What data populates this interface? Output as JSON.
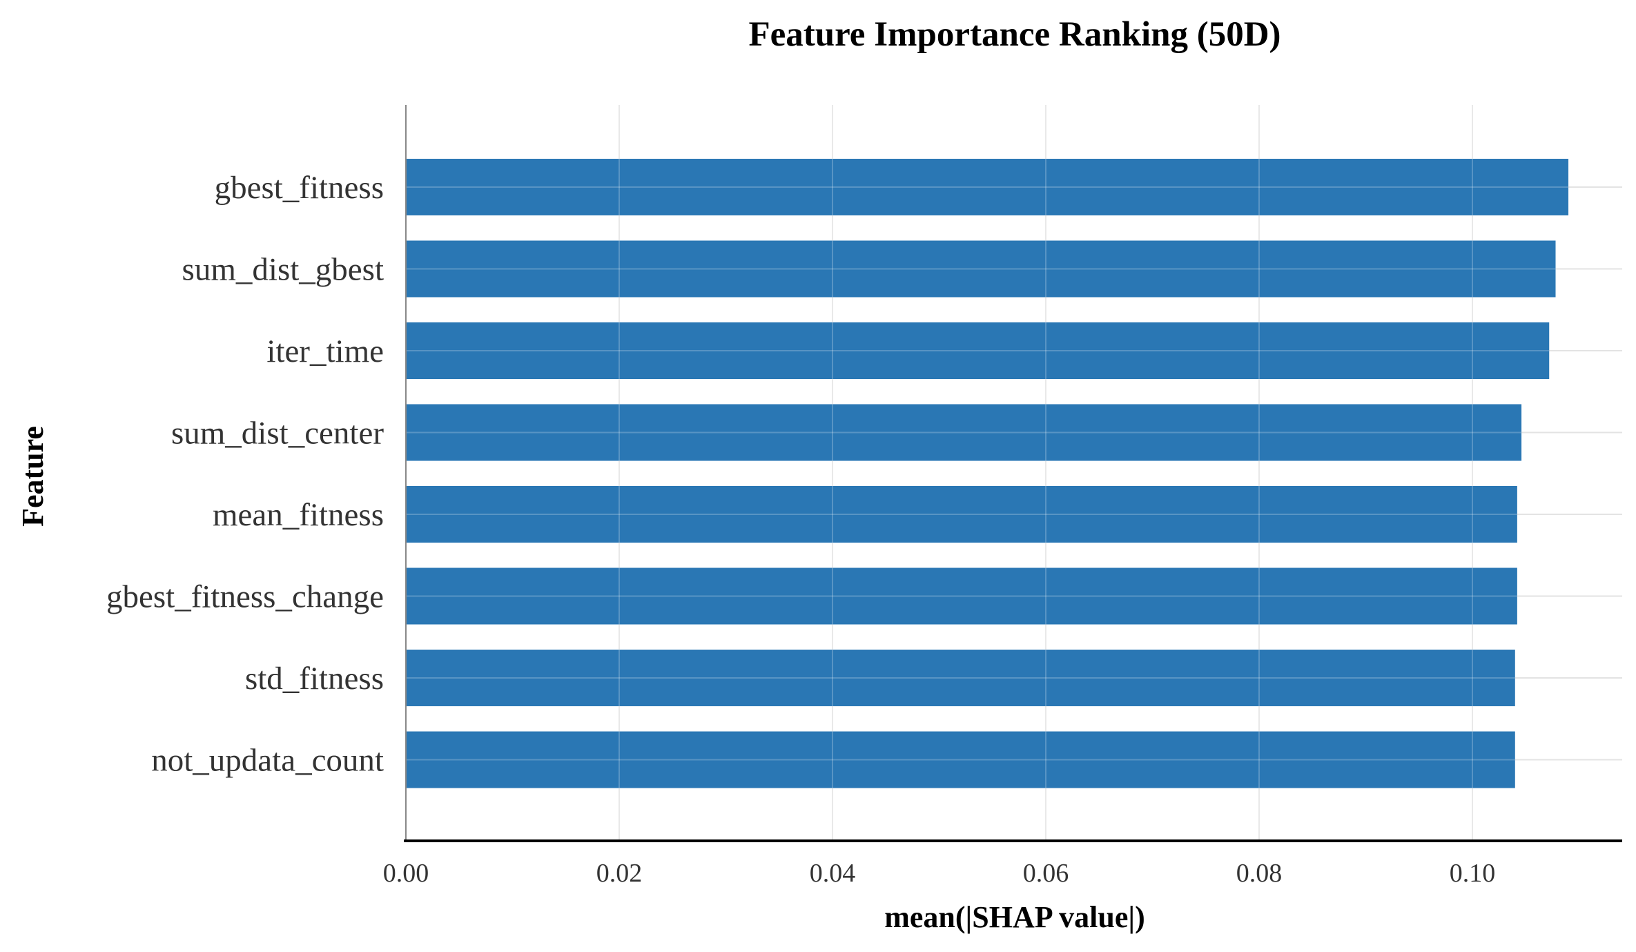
{
  "chart_data": {
    "type": "bar",
    "orientation": "horizontal",
    "title": "Feature Importance Ranking (50D)",
    "xlabel": "mean(|SHAP value|)",
    "ylabel": "Feature",
    "categories": [
      "gbest_fitness",
      "sum_dist_gbest",
      "iter_time",
      "sum_dist_center",
      "mean_fitness",
      "gbest_fitness_change",
      "std_fitness",
      "not_updata_count"
    ],
    "values": [
      0.109,
      0.1078,
      0.1072,
      0.1046,
      0.1042,
      0.1042,
      0.104,
      0.104
    ],
    "xlim": [
      0,
      0.114
    ],
    "xticks": [
      "0.00",
      "0.02",
      "0.04",
      "0.06",
      "0.08",
      "0.10"
    ],
    "xtick_values": [
      0,
      0.02,
      0.04,
      0.06,
      0.08,
      0.1
    ],
    "grid": true,
    "bar_color": "#2a77b4"
  }
}
